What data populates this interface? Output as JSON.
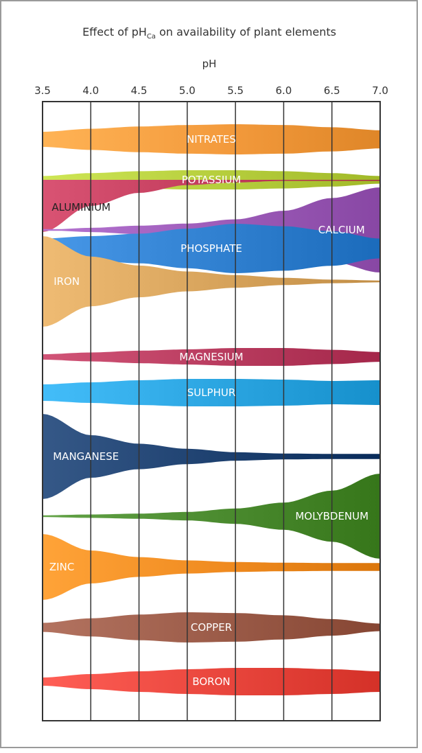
{
  "chart_data": {
    "type": "area",
    "title_main": "Effect of pH",
    "title_sub": "Ca",
    "title_rest": " on availability of plant elements",
    "xlabel": "pH",
    "xlim": [
      3.5,
      7.0
    ],
    "ticks": [
      "3.5",
      "4.0",
      "4.5",
      "5.0",
      "5.5",
      "6.0",
      "6.5",
      "7.0"
    ],
    "tick_values": [
      3.5,
      4.0,
      4.5,
      5.0,
      5.5,
      6.0,
      6.5,
      7.0
    ],
    "grid": true,
    "elements": [
      {
        "name": "NITRATES",
        "color": "#f39a3c",
        "label_ph": 5.25,
        "label_color": "#ffffff",
        "availability": [
          [
            3.5,
            0.5
          ],
          [
            4.0,
            0.7
          ],
          [
            4.5,
            0.85
          ],
          [
            5.0,
            0.95
          ],
          [
            5.5,
            1.0
          ],
          [
            6.0,
            0.95
          ],
          [
            6.5,
            0.8
          ],
          [
            7.0,
            0.6
          ]
        ]
      },
      {
        "name": "POTASSIUM",
        "color": "#b5cd3c",
        "label_ph": 5.25,
        "label_color": "#ffffff",
        "availability": [
          [
            3.5,
            0.4
          ],
          [
            4.0,
            0.7
          ],
          [
            4.5,
            0.9
          ],
          [
            5.0,
            1.0
          ],
          [
            5.5,
            1.0
          ],
          [
            6.0,
            0.9
          ],
          [
            6.5,
            0.7
          ],
          [
            7.0,
            0.4
          ]
        ]
      },
      {
        "name": "ALUMINIUM",
        "color": "#c03a5a",
        "label_ph": 3.9,
        "label_color": "#222222",
        "availability": [
          [
            3.5,
            1.0
          ],
          [
            4.0,
            0.5
          ],
          [
            4.5,
            0.25
          ],
          [
            5.0,
            0.1
          ],
          [
            5.5,
            0.05
          ],
          [
            6.0,
            0.02
          ],
          [
            6.5,
            0.0
          ],
          [
            7.0,
            0.0
          ]
        ]
      },
      {
        "name": "CALCIUM",
        "color": "#9c5bb8",
        "label_ph": 6.6,
        "label_color": "#ffffff",
        "availability": [
          [
            3.5,
            0.0
          ],
          [
            4.0,
            0.05
          ],
          [
            4.5,
            0.1
          ],
          [
            5.0,
            0.15
          ],
          [
            5.5,
            0.25
          ],
          [
            6.0,
            0.45
          ],
          [
            6.5,
            0.75
          ],
          [
            7.0,
            1.0
          ]
        ]
      },
      {
        "name": "PHOSPHATE",
        "color": "#2f7fcf",
        "label_ph": 5.25,
        "label_color": "#ffffff",
        "availability": [
          [
            3.5,
            0.4
          ],
          [
            4.0,
            0.5
          ],
          [
            4.5,
            0.6
          ],
          [
            5.0,
            0.8
          ],
          [
            5.5,
            1.0
          ],
          [
            6.0,
            0.9
          ],
          [
            6.5,
            0.7
          ],
          [
            7.0,
            0.4
          ]
        ]
      },
      {
        "name": "IRON",
        "color": "#d6a25a",
        "label_ph": 3.75,
        "label_color": "#ffffff",
        "availability": [
          [
            3.5,
            1.0
          ],
          [
            4.0,
            0.55
          ],
          [
            4.5,
            0.35
          ],
          [
            5.0,
            0.22
          ],
          [
            5.5,
            0.14
          ],
          [
            6.0,
            0.08
          ],
          [
            6.5,
            0.04
          ],
          [
            7.0,
            0.02
          ]
        ]
      },
      {
        "name": "MAGNESIUM",
        "color": "#b83b5e",
        "label_ph": 5.25,
        "label_color": "#ffffff",
        "availability": [
          [
            3.5,
            0.3
          ],
          [
            4.0,
            0.5
          ],
          [
            4.5,
            0.7
          ],
          [
            5.0,
            0.85
          ],
          [
            5.5,
            1.0
          ],
          [
            6.0,
            1.0
          ],
          [
            6.5,
            0.8
          ],
          [
            7.0,
            0.55
          ]
        ]
      },
      {
        "name": "SULPHUR",
        "color": "#2aa4e0",
        "label_ph": 5.25,
        "label_color": "#ffffff",
        "availability": [
          [
            3.5,
            0.6
          ],
          [
            4.0,
            0.75
          ],
          [
            4.5,
            0.9
          ],
          [
            5.0,
            1.0
          ],
          [
            5.5,
            1.0
          ],
          [
            6.0,
            0.95
          ],
          [
            6.5,
            0.85
          ],
          [
            7.0,
            0.9
          ]
        ]
      },
      {
        "name": "MANGANESE",
        "color": "#1c3f6e",
        "label_ph": 3.95,
        "label_color": "#ffffff",
        "availability": [
          [
            3.5,
            1.0
          ],
          [
            4.0,
            0.5
          ],
          [
            4.5,
            0.3
          ],
          [
            5.0,
            0.18
          ],
          [
            5.5,
            0.1
          ],
          [
            6.0,
            0.07
          ],
          [
            6.5,
            0.06
          ],
          [
            7.0,
            0.06
          ]
        ]
      },
      {
        "name": "MOLYBDENUM",
        "color": "#4a8a2e",
        "label_ph": 6.5,
        "label_color": "#ffffff",
        "availability": [
          [
            3.5,
            0.02
          ],
          [
            4.0,
            0.04
          ],
          [
            4.5,
            0.06
          ],
          [
            5.0,
            0.1
          ],
          [
            5.5,
            0.18
          ],
          [
            6.0,
            0.32
          ],
          [
            6.5,
            0.6
          ],
          [
            7.0,
            1.0
          ]
        ]
      },
      {
        "name": "ZINC",
        "color": "#ef8a1f",
        "label_ph": 3.7,
        "label_color": "#ffffff",
        "availability": [
          [
            3.5,
            1.0
          ],
          [
            4.0,
            0.5
          ],
          [
            4.5,
            0.3
          ],
          [
            5.0,
            0.2
          ],
          [
            5.5,
            0.15
          ],
          [
            6.0,
            0.13
          ],
          [
            6.5,
            0.12
          ],
          [
            7.0,
            0.12
          ]
        ]
      },
      {
        "name": "COPPER",
        "color": "#9a5a47",
        "label_ph": 5.25,
        "label_color": "#ffffff",
        "availability": [
          [
            3.5,
            0.3
          ],
          [
            4.0,
            0.6
          ],
          [
            4.5,
            0.85
          ],
          [
            5.0,
            1.0
          ],
          [
            5.5,
            0.95
          ],
          [
            6.0,
            0.8
          ],
          [
            6.5,
            0.55
          ],
          [
            7.0,
            0.25
          ]
        ]
      },
      {
        "name": "BORON",
        "color": "#e8453c",
        "label_ph": 5.25,
        "label_color": "#ffffff",
        "availability": [
          [
            3.5,
            0.3
          ],
          [
            4.0,
            0.55
          ],
          [
            4.5,
            0.75
          ],
          [
            5.0,
            0.9
          ],
          [
            5.5,
            1.0
          ],
          [
            6.0,
            1.0
          ],
          [
            6.5,
            0.9
          ],
          [
            7.0,
            0.75
          ]
        ]
      }
    ]
  }
}
